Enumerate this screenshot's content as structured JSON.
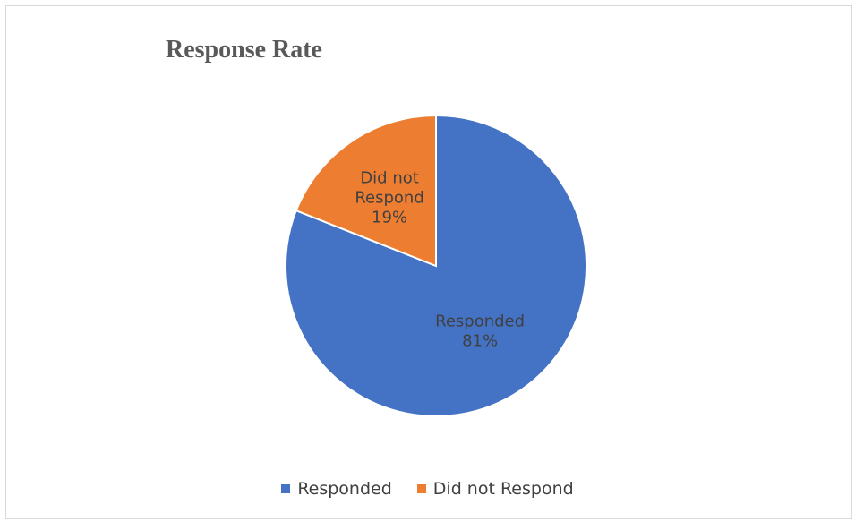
{
  "chart_data": {
    "type": "pie",
    "title": "Response Rate",
    "categories": [
      "Responded",
      "Did not Respond"
    ],
    "values": [
      81,
      19
    ],
    "unit": "%",
    "colors": [
      "#4472c4",
      "#ed7d31"
    ],
    "slice_labels": [
      {
        "lines": [
          "Responded",
          "81%"
        ]
      },
      {
        "lines": [
          "Did not",
          "Respond",
          "19%"
        ]
      }
    ],
    "legend": {
      "position": "bottom",
      "entries": [
        "Responded",
        "Did not Respond"
      ]
    }
  }
}
